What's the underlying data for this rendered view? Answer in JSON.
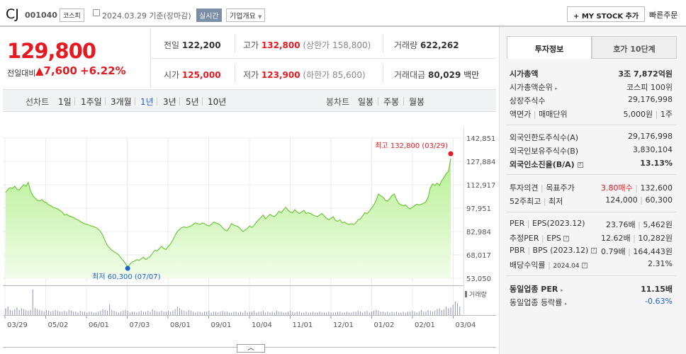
{
  "header": {
    "name": "CJ",
    "code": "001040",
    "market": "코스피",
    "date": "2024.03.29 기준(장마감)",
    "live_label": "실시간",
    "overview_label": "기업개요",
    "mystock_label": "+ MY STOCK 추가",
    "quick_order_label": "빠른주문"
  },
  "price": {
    "current": "129,800",
    "change_label": "전일대비",
    "change": "▲7,600",
    "change_rate": "+6.22%"
  },
  "quote": {
    "prev_label": "전일",
    "prev": "122,200",
    "high_label": "고가",
    "high": "132,800",
    "upper_limit": "(상한가 158,800)",
    "volume_label": "거래량",
    "volume": "622,262",
    "open_label": "시가",
    "open": "125,000",
    "low_label": "저가",
    "low": "123,900",
    "lower_limit": "(하한가 85,600)",
    "amount_label": "거래대금",
    "amount": "80,029",
    "amount_unit": "백만"
  },
  "period_bar": {
    "line_label": "선차트",
    "line_periods": [
      "1일",
      "1주일",
      "3개월",
      "1년",
      "3년",
      "5년",
      "10년"
    ],
    "active": "1년",
    "candle_label": "봉차트",
    "candle_periods": [
      "일봉",
      "주봉",
      "월봉"
    ]
  },
  "chart_data": {
    "type": "area",
    "x_ticks": [
      "03/29",
      "05/02",
      "06/01",
      "07/03",
      "08/01",
      "09/01",
      "10/04",
      "11/01",
      "12/01",
      "01/02",
      "02/01",
      "03/04"
    ],
    "y_ticks": [
      "142,851",
      "127,884",
      "112,917",
      "97,951",
      "82,984",
      "68,017",
      "53,050"
    ],
    "ylim": [
      53050,
      142851
    ],
    "max_label": "최고 132,800 (03/29)",
    "min_label": "최저 60,300 (07/07)",
    "volume_label": "거래량",
    "series": [
      {
        "values": [
          108000,
          110000,
          111000,
          110500,
          112000,
          110000,
          109500,
          111500,
          113000,
          112000,
          114500,
          109000,
          106000,
          104500,
          103000,
          102500,
          103500,
          102000,
          101500,
          100000,
          99500,
          98500,
          98000,
          97500,
          96500,
          95500,
          93500,
          94000,
          93000,
          92500,
          92000,
          91000,
          90500,
          89500,
          88500,
          88000,
          87500,
          87000,
          86500,
          86000,
          85500,
          84500,
          83000,
          80500,
          77000,
          74000,
          72500,
          71000,
          70000,
          69000,
          68000,
          66000,
          64500,
          62500,
          60300,
          62000,
          63500,
          64000,
          65000,
          64500,
          65500,
          66500,
          65000,
          66000,
          67000,
          69000,
          71000,
          70500,
          72000,
          73500,
          72000,
          71500,
          73500,
          75000,
          77500,
          80500,
          83000,
          84500,
          85500,
          86000,
          85500,
          86000,
          86500,
          87500,
          88500,
          88000,
          87500,
          88500,
          88000,
          87000,
          86500,
          87500,
          89000,
          88500,
          88000,
          87000,
          85500,
          84000,
          83500,
          85500,
          88000,
          87000,
          86500,
          86000,
          84500,
          83000,
          84000,
          85000,
          86500,
          85500,
          87000,
          89000,
          90500,
          92000,
          93500,
          91000,
          92500,
          94000,
          93000,
          92500,
          94000,
          96000,
          95000,
          97000,
          98500,
          96500,
          95500,
          95000,
          97000,
          95500,
          94500,
          95500,
          96500,
          94500,
          95000,
          94500,
          93500,
          93000,
          92500,
          93500,
          94500,
          93000,
          91500,
          90500,
          91500,
          92500,
          90000,
          89500,
          90500,
          88500,
          89000,
          88000,
          87500,
          88000,
          87500,
          88500,
          90500,
          91000,
          93000,
          95000,
          94500,
          96000,
          98000,
          100000,
          103000,
          107000,
          106000,
          105000,
          103000,
          102500,
          104000,
          106000,
          107000,
          103500,
          101000,
          100000,
          99500,
          100000,
          98500,
          97500,
          98500,
          99500,
          100500,
          100000,
          100500,
          101000,
          102000,
          105000,
          111000,
          113500,
          112500,
          114000,
          112500,
          115500,
          117500,
          120000,
          121500,
          129800
        ]
      },
      {
        "name": "거래량",
        "values": [
          8,
          10,
          6,
          5,
          7,
          9,
          6,
          8,
          7,
          6,
          5,
          6,
          30,
          8,
          7,
          6,
          5,
          4,
          6,
          5,
          4,
          5,
          6,
          5,
          4,
          4,
          5,
          4,
          6,
          5,
          4,
          4,
          3,
          5,
          4,
          4,
          3,
          4,
          4,
          3,
          3,
          4,
          5,
          7,
          6,
          5,
          12,
          6,
          5,
          4,
          3,
          4,
          5,
          6,
          5,
          3,
          4,
          4,
          3,
          4,
          5,
          4,
          4,
          5,
          4,
          7,
          5,
          4,
          4,
          5,
          4,
          4,
          5,
          4,
          5,
          7,
          10,
          8,
          6,
          5,
          4,
          6,
          5,
          4,
          3,
          4,
          4,
          3,
          4,
          4,
          5,
          3,
          4,
          4,
          3,
          4,
          5,
          4,
          4,
          3,
          3,
          4,
          4,
          3,
          4,
          3,
          5,
          3,
          4,
          4,
          5,
          3,
          4,
          4,
          5,
          3,
          4,
          3,
          4,
          3,
          5,
          4,
          4,
          3,
          3,
          4,
          5,
          4,
          3,
          4,
          4,
          3,
          3,
          4,
          3,
          3,
          4,
          3,
          3,
          4,
          3,
          3,
          3,
          4,
          3,
          3,
          3,
          4,
          4,
          3,
          3,
          4,
          3,
          3,
          4,
          4,
          5,
          4,
          3,
          4,
          5,
          3,
          4,
          5,
          6,
          5,
          4,
          4,
          3,
          4,
          3,
          4,
          3,
          4,
          3,
          3,
          4,
          3,
          4,
          4,
          5,
          4,
          3,
          4,
          6,
          4,
          4,
          6,
          5,
          4,
          5,
          7,
          8,
          6,
          7,
          10,
          8,
          9,
          12,
          16,
          14,
          10
        ]
      }
    ]
  },
  "expand_label": "︿",
  "panel": {
    "tab1": "투자정보",
    "tab2": "호가 10단계",
    "g1": [
      {
        "label": "시가총액",
        "value": "3조 7,872억원",
        "bold": true
      },
      {
        "label": "시가총액순위",
        "value": "코스피 100위",
        "caret": true
      },
      {
        "label": "상장주식수",
        "value": "29,176,998"
      },
      {
        "label": "액면가",
        "label2": "매매단위",
        "value": "5,000원",
        "value2": "1주"
      }
    ],
    "g2": [
      {
        "label": "외국인한도주식수(A)",
        "value": "29,176,998"
      },
      {
        "label": "외국인보유주식수(B)",
        "value": "3,830,104"
      },
      {
        "label": "외국인소진율(B/A)",
        "value": "13.13%",
        "bold": true,
        "q": true
      }
    ],
    "g3": [
      {
        "label": "투자의견",
        "label2": "목표주가",
        "value_red": "3.80매수",
        "value2": "132,600"
      },
      {
        "label": "52주최고",
        "label2": "최저",
        "value": "124,000",
        "value2": "60,300"
      }
    ],
    "g4": [
      {
        "label": "PER",
        "label2": "EPS(2023.12)",
        "value": "23.76배",
        "value2": "5,462원"
      },
      {
        "label": "추정PER",
        "label2": "EPS",
        "value": "12.62배",
        "value2": "10,282원",
        "q": true
      },
      {
        "label": "PBR",
        "label2": "BPS (2023.12)",
        "value": "0.79배",
        "value2": "164,443원",
        "q": true
      },
      {
        "label": "배당수익률",
        "label2": "2024.04",
        "value": "2.31%",
        "q": true
      }
    ],
    "g5": [
      {
        "label": "동일업종 PER",
        "value": "11.15배",
        "bold": true
      },
      {
        "label": "동일업종 등락률",
        "value": "-0.63%",
        "blue": true
      }
    ]
  }
}
